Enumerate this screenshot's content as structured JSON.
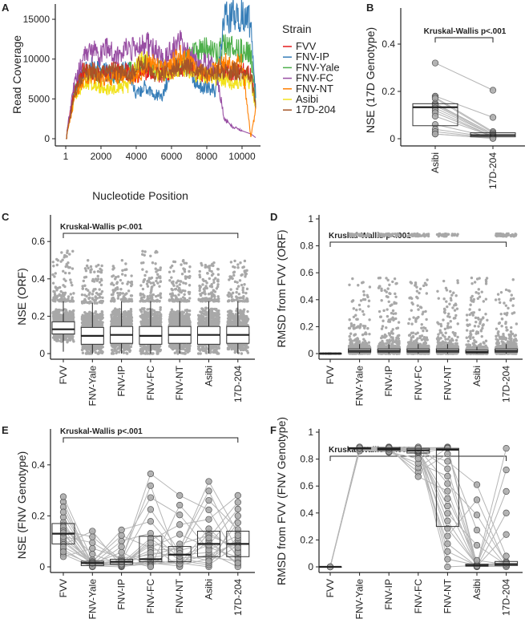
{
  "panels": {
    "a": "A",
    "b": "B",
    "c": "C",
    "d": "D",
    "e": "E",
    "f": "F"
  },
  "kw_label": "Kruskal-Wallis p<.001",
  "colors": {
    "FVV": "#e41a1c",
    "FNV-IP": "#377eb8",
    "FNV-Yale": "#4daf4a",
    "FNV-FC": "#984ea3",
    "FNV-NT": "#ff7f00",
    "Asibi": "#f2e21c",
    "17D-204": "#a65628"
  },
  "chart_data": [
    {
      "panel": "A",
      "type": "line",
      "xlabel": "Nucleotide Position",
      "ylabel": "Read Coverage",
      "xticks": [
        1,
        2000,
        4000,
        6000,
        8000,
        10000
      ],
      "yticks": [
        0,
        5000,
        10000,
        15000
      ],
      "xlim": [
        1,
        10862
      ],
      "ylim": [
        0,
        16500
      ],
      "legend": {
        "title": "Strain",
        "placement": "right"
      },
      "x": [
        1,
        500,
        1000,
        1500,
        2000,
        2500,
        3000,
        3500,
        4000,
        4500,
        5000,
        5500,
        6000,
        6500,
        7000,
        7500,
        8000,
        8500,
        9000,
        9500,
        10000,
        10500,
        10800
      ],
      "series": [
        {
          "name": "FVV",
          "values": [
            0,
            6500,
            8500,
            8500,
            8000,
            8500,
            8500,
            8500,
            8000,
            8500,
            8500,
            8000,
            8500,
            9000,
            9000,
            8500,
            8000,
            8500,
            8500,
            8500,
            8500,
            8000,
            4000
          ]
        },
        {
          "name": "FNV-IP",
          "values": [
            0,
            6000,
            8500,
            9000,
            8500,
            8500,
            8000,
            9000,
            5500,
            6500,
            5500,
            5500,
            9000,
            9500,
            9000,
            6500,
            6500,
            6000,
            15000,
            15500,
            15500,
            14500,
            5000
          ]
        },
        {
          "name": "FNV-Yale",
          "values": [
            0,
            6000,
            8000,
            8500,
            8000,
            8000,
            8000,
            8500,
            8500,
            9500,
            8500,
            9000,
            8500,
            9000,
            10500,
            11000,
            11500,
            10500,
            12000,
            11500,
            11000,
            10500,
            4000
          ]
        },
        {
          "name": "FNV-FC",
          "values": [
            0,
            7000,
            10000,
            11000,
            10500,
            11500,
            10500,
            11500,
            11000,
            12000,
            11500,
            10000,
            11000,
            12000,
            10500,
            9500,
            9500,
            9000,
            2500,
            1500,
            1000,
            600,
            100
          ]
        },
        {
          "name": "FNV-NT",
          "values": [
            0,
            5000,
            7500,
            8000,
            7500,
            7500,
            8000,
            8000,
            7500,
            9000,
            9500,
            8500,
            9500,
            10500,
            10000,
            8500,
            8000,
            8500,
            9500,
            9500,
            9500,
            200,
            4000
          ]
        },
        {
          "name": "Asibi",
          "values": [
            0,
            5000,
            7000,
            7000,
            6500,
            6000,
            6500,
            6500,
            9000,
            10000,
            8500,
            8000,
            8500,
            9000,
            8000,
            8000,
            8000,
            7500,
            7500,
            7000,
            7500,
            7000,
            3500
          ]
        },
        {
          "name": "17D-204",
          "values": [
            0,
            5500,
            8500,
            8500,
            8000,
            8500,
            8500,
            8000,
            9000,
            9500,
            8000,
            8000,
            8500,
            9000,
            9000,
            8500,
            8000,
            8500,
            8500,
            8500,
            8500,
            8000,
            4000
          ]
        }
      ]
    },
    {
      "panel": "B",
      "type": "box",
      "ylabel": "NSE (17D Genotype)",
      "categories": [
        "Asibi",
        "17D-204"
      ],
      "yticks": [
        0,
        0.2,
        0.4
      ],
      "ylim": [
        0,
        0.55
      ],
      "annotation": "Kruskal-Wallis p<.001",
      "boxes": [
        {
          "q1": 0.055,
          "median": 0.133,
          "q3": 0.148,
          "lo": 0.02,
          "hi": 0.18
        },
        {
          "q1": 0.008,
          "median": 0.015,
          "q3": 0.025,
          "lo": 0.0,
          "hi": 0.035
        }
      ],
      "paired_points": [
        [
          0.32,
          0.18,
          0.175,
          0.17,
          0.15,
          0.145,
          0.14,
          0.13,
          0.12,
          0.11,
          0.095,
          0.06,
          0.04,
          0.03,
          0.02,
          0.02
        ],
        [
          0.205,
          0.09,
          0.03,
          0.025,
          0.02,
          0.02,
          0.015,
          0.015,
          0.01,
          0.01,
          0.01,
          0.005,
          0.005,
          0.003,
          0.002,
          0.001
        ]
      ]
    },
    {
      "panel": "C",
      "type": "box",
      "ylabel": "NSE (ORF)",
      "categories": [
        "FVV",
        "FNV-Yale",
        "FNV-IP",
        "FNV-FC",
        "FNV-NT",
        "Asibi",
        "17D-204"
      ],
      "yticks": [
        0,
        0.2,
        0.4,
        0.6
      ],
      "ylim": [
        0,
        0.65
      ],
      "annotation": "Kruskal-Wallis p<.001",
      "boxes": [
        {
          "q1": 0.105,
          "median": 0.13,
          "q3": 0.17,
          "lo": 0.01,
          "hi": 0.28,
          "max": 0.55
        },
        {
          "q1": 0.05,
          "median": 0.095,
          "q3": 0.14,
          "lo": 0,
          "hi": 0.27,
          "max": 0.5
        },
        {
          "q1": 0.055,
          "median": 0.1,
          "q3": 0.145,
          "lo": 0,
          "hi": 0.28,
          "max": 0.5
        },
        {
          "q1": 0.05,
          "median": 0.095,
          "q3": 0.145,
          "lo": 0,
          "hi": 0.28,
          "max": 0.55
        },
        {
          "q1": 0.055,
          "median": 0.1,
          "q3": 0.145,
          "lo": 0,
          "hi": 0.28,
          "max": 0.5
        },
        {
          "q1": 0.05,
          "median": 0.1,
          "q3": 0.145,
          "lo": 0,
          "hi": 0.28,
          "max": 0.5
        },
        {
          "q1": 0.055,
          "median": 0.1,
          "q3": 0.145,
          "lo": 0,
          "hi": 0.28,
          "max": 0.5
        }
      ]
    },
    {
      "panel": "D",
      "type": "box",
      "ylabel": "RMSD from FVV (ORF)",
      "categories": [
        "FVV",
        "FNV-Yale",
        "FNV-IP",
        "FNV-FC",
        "FNV-NT",
        "Asibi",
        "17D-204"
      ],
      "yticks": [
        0,
        0.2,
        0.4,
        0.6,
        0.8,
        1
      ],
      "ylim": [
        0,
        1.1
      ],
      "annotation": "Kruskal-Wallis p<.001",
      "boxes": [
        {
          "q1": 0,
          "median": 0,
          "q3": 0,
          "lo": 0,
          "hi": 0,
          "max": 0,
          "cluster": 0
        },
        {
          "q1": 0.01,
          "median": 0.02,
          "q3": 0.035,
          "lo": 0,
          "hi": 0.07,
          "max": 0.89,
          "cluster": 0.88
        },
        {
          "q1": 0.01,
          "median": 0.02,
          "q3": 0.035,
          "lo": 0,
          "hi": 0.07,
          "max": 0.89,
          "cluster": 0.88
        },
        {
          "q1": 0.01,
          "median": 0.02,
          "q3": 0.035,
          "lo": 0,
          "hi": 0.07,
          "max": 0.89,
          "cluster": 0.88
        },
        {
          "q1": 0.01,
          "median": 0.02,
          "q3": 0.035,
          "lo": 0,
          "hi": 0.07,
          "max": 0.89,
          "cluster": 0.88
        },
        {
          "q1": 0.005,
          "median": 0.012,
          "q3": 0.025,
          "lo": 0,
          "hi": 0.05,
          "max": 0.61,
          "cluster": 0
        },
        {
          "q1": 0.01,
          "median": 0.02,
          "q3": 0.035,
          "lo": 0,
          "hi": 0.07,
          "max": 0.89,
          "cluster": 0.88
        }
      ]
    },
    {
      "panel": "E",
      "type": "box",
      "ylabel": "NSE (FNV Genotype)",
      "categories": [
        "FVV",
        "FNV-Yale",
        "FNV-IP",
        "FNV-FC",
        "FNV-NT",
        "Asibi",
        "17D-204"
      ],
      "yticks": [
        0,
        0.2,
        0.4
      ],
      "ylim": [
        0,
        0.55
      ],
      "annotation": "Kruskal-Wallis p<.001",
      "boxes": [
        {
          "q1": 0.09,
          "median": 0.13,
          "q3": 0.17,
          "lo": 0.04,
          "hi": 0.275
        },
        {
          "q1": 0.005,
          "median": 0.015,
          "q3": 0.022,
          "lo": 0,
          "hi": 0.14
        },
        {
          "q1": 0.01,
          "median": 0.02,
          "q3": 0.03,
          "lo": 0,
          "hi": 0.145
        },
        {
          "q1": 0.02,
          "median": 0.03,
          "q3": 0.12,
          "lo": 0,
          "hi": 0.365
        },
        {
          "q1": 0.02,
          "median": 0.048,
          "q3": 0.08,
          "lo": 0,
          "hi": 0.28
        },
        {
          "q1": 0.04,
          "median": 0.09,
          "q3": 0.14,
          "lo": 0,
          "hi": 0.335
        },
        {
          "q1": 0.04,
          "median": 0.09,
          "q3": 0.14,
          "lo": 0,
          "hi": 0.28
        }
      ]
    },
    {
      "panel": "F",
      "type": "box",
      "ylabel": "RMSD from FVV (FNV Genotype)",
      "categories": [
        "FVV",
        "FNV-Yale",
        "FNV-IP",
        "FNV-FC",
        "FNV-NT",
        "Asibi",
        "17D-204"
      ],
      "yticks": [
        0,
        0.2,
        0.4,
        0.6,
        0.8,
        1
      ],
      "ylim": [
        0,
        1.1
      ],
      "annotation": "Kruskal-Wallis p<.001",
      "boxes": [
        {
          "q1": 0,
          "median": 0,
          "q3": 0,
          "lo": 0,
          "hi": 0
        },
        {
          "q1": 0.875,
          "median": 0.88,
          "q3": 0.885,
          "lo": 0.86,
          "hi": 0.89
        },
        {
          "q1": 0.865,
          "median": 0.875,
          "q3": 0.885,
          "lo": 0.85,
          "hi": 0.89
        },
        {
          "q1": 0.845,
          "median": 0.865,
          "q3": 0.88,
          "lo": 0.67,
          "hi": 0.89
        },
        {
          "q1": 0.3,
          "median": 0.87,
          "q3": 0.88,
          "lo": 0,
          "hi": 0.89
        },
        {
          "q1": 0.005,
          "median": 0.01,
          "q3": 0.02,
          "lo": 0,
          "hi": 0.61
        },
        {
          "q1": 0.01,
          "median": 0.02,
          "q3": 0.04,
          "lo": 0,
          "hi": 0.88
        }
      ]
    }
  ]
}
